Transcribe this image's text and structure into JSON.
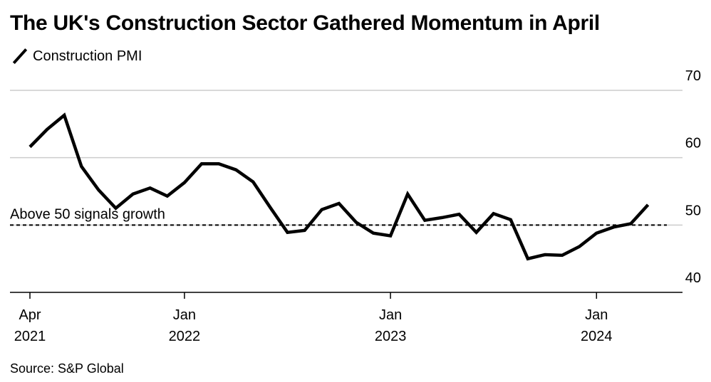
{
  "title": "The UK's Construction Sector Gathered Momentum in April",
  "legend": {
    "series_label": "Construction PMI"
  },
  "source": "Source: S&P Global",
  "colors": {
    "line": "#000000",
    "grid": "#cccccc",
    "axis": "#000000"
  },
  "chart_data": {
    "type": "line",
    "title": "The UK's Construction Sector Gathered Momentum in April",
    "xlabel": "",
    "ylabel": "",
    "ylim": [
      40,
      70
    ],
    "y_ticks": [
      {
        "value": 70,
        "label": "70"
      },
      {
        "value": 60,
        "label": "60"
      },
      {
        "value": 50,
        "label": "50"
      },
      {
        "value": 40,
        "label": "40"
      }
    ],
    "x_ticks": [
      {
        "date": "2021-04",
        "line1": "Apr",
        "line2": "2021"
      },
      {
        "date": "2022-01",
        "line1": "Jan",
        "line2": "2022"
      },
      {
        "date": "2023-01",
        "line1": "Jan",
        "line2": "2023"
      },
      {
        "date": "2024-01",
        "line1": "Jan",
        "line2": "2024"
      }
    ],
    "x_range": [
      "2021-04",
      "2024-05"
    ],
    "grid": true,
    "y_axis_side": "right",
    "reference_line": {
      "value": 50,
      "label": "Above 50 signals growth",
      "style": "dashed"
    },
    "series": [
      {
        "name": "Construction PMI",
        "x": [
          "2021-04",
          "2021-05",
          "2021-06",
          "2021-07",
          "2021-08",
          "2021-09",
          "2021-10",
          "2021-11",
          "2021-12",
          "2022-01",
          "2022-02",
          "2022-03",
          "2022-04",
          "2022-05",
          "2022-06",
          "2022-07",
          "2022-08",
          "2022-09",
          "2022-10",
          "2022-11",
          "2022-12",
          "2023-01",
          "2023-02",
          "2023-03",
          "2023-04",
          "2023-05",
          "2023-06",
          "2023-07",
          "2023-08",
          "2023-09",
          "2023-10",
          "2023-11",
          "2023-12",
          "2024-01",
          "2024-02",
          "2024-03",
          "2024-04"
        ],
        "values": [
          61.6,
          64.2,
          66.3,
          58.7,
          55.2,
          52.5,
          54.6,
          55.5,
          54.3,
          56.3,
          59.1,
          59.1,
          58.2,
          56.4,
          52.6,
          48.9,
          49.2,
          52.3,
          53.2,
          50.4,
          48.8,
          48.4,
          54.6,
          50.7,
          51.1,
          51.6,
          48.9,
          51.7,
          50.8,
          45.0,
          45.6,
          45.5,
          46.8,
          48.8,
          49.7,
          50.2,
          53.0
        ]
      }
    ]
  }
}
